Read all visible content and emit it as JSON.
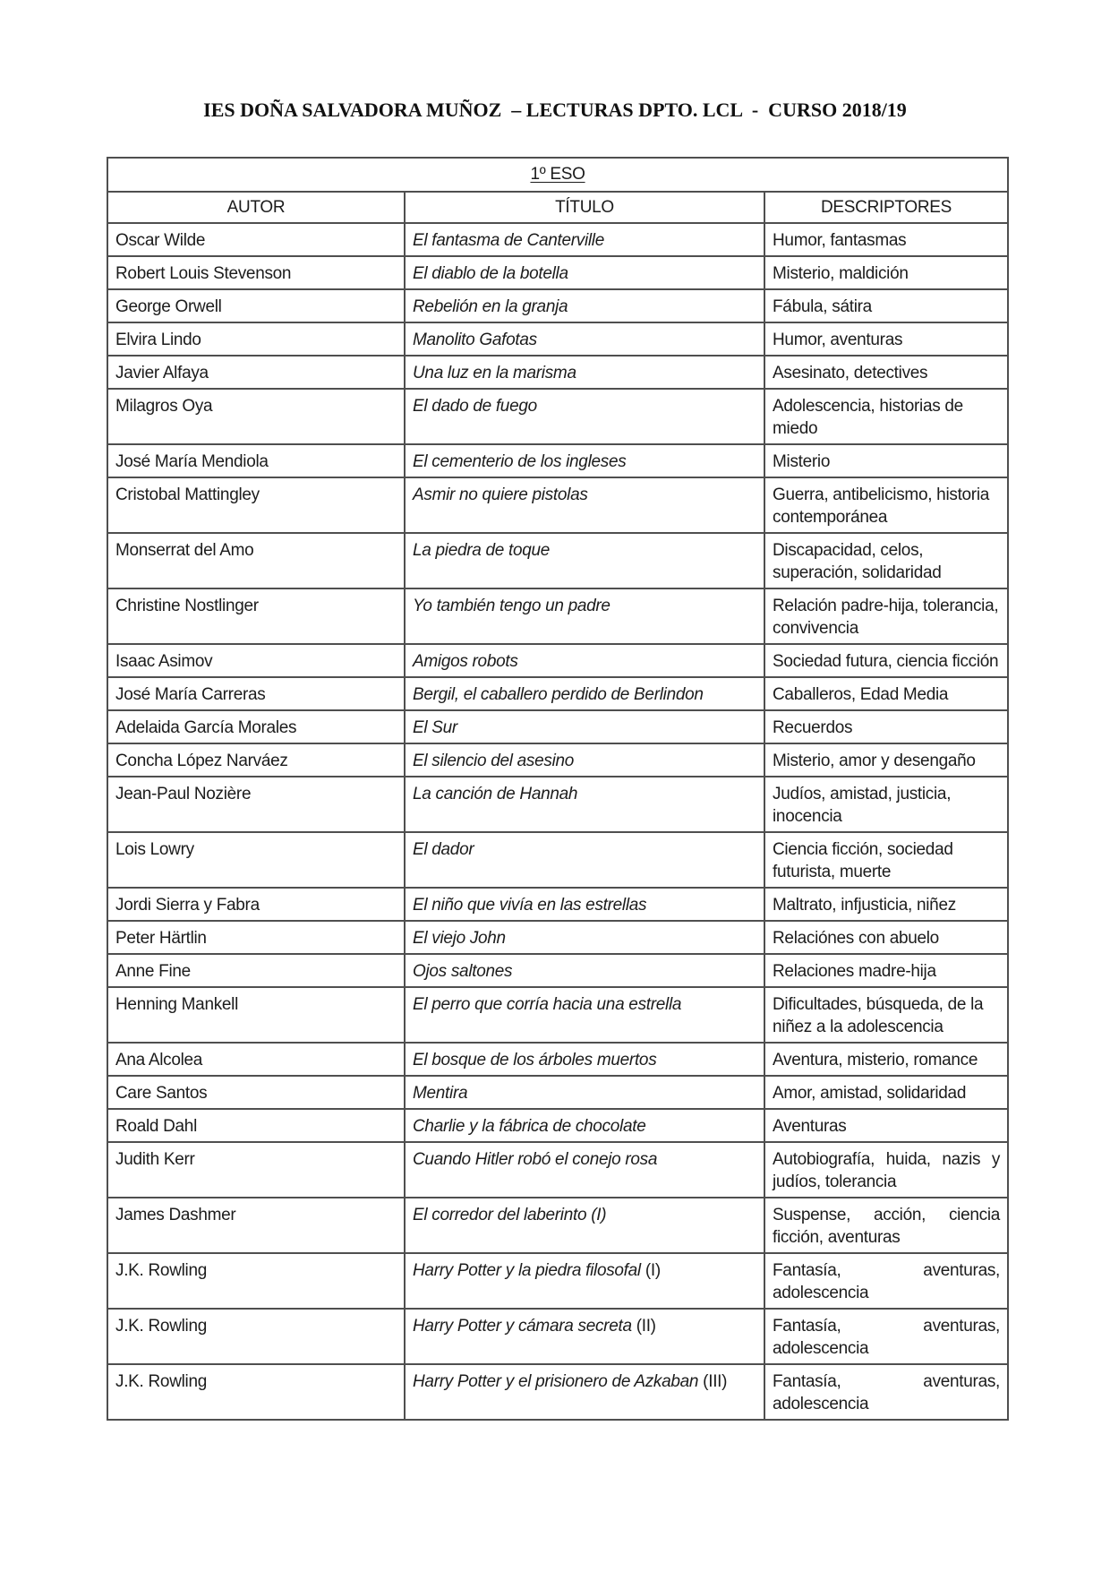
{
  "doc": {
    "title": "IES DOÑA SALVADORA MUÑOZ  – LECTURAS DPTO. LCL  -  CURSO 2018/19",
    "table": {
      "section_header": "1º ESO",
      "columns": [
        "AUTOR",
        "TÍTULO",
        "DESCRIPTORES"
      ],
      "rows": [
        {
          "author": "Oscar Wilde",
          "title": "El fantasma de Canterville",
          "title_suffix": "",
          "descriptors": "Humor, fantasmas",
          "justify": false
        },
        {
          "author": "Robert Louis Stevenson",
          "title": "El diablo de la botella",
          "title_suffix": "",
          "descriptors": "Misterio, maldición",
          "justify": false
        },
        {
          "author": "George Orwell",
          "title": "Rebelión en la granja",
          "title_suffix": "",
          "descriptors": "Fábula, sátira",
          "justify": false
        },
        {
          "author": "Elvira Lindo",
          "title": "Manolito Gafotas",
          "title_suffix": "",
          "descriptors": "Humor, aventuras",
          "justify": false
        },
        {
          "author": "Javier Alfaya",
          "title": "Una luz en la marisma",
          "title_suffix": "",
          "descriptors": "Asesinato, detectives",
          "justify": false
        },
        {
          "author": "Milagros Oya",
          "title": "El dado de fuego",
          "title_suffix": "",
          "descriptors": "Adolescencia, historias de miedo",
          "justify": false
        },
        {
          "author": "José María Mendiola",
          "title": "El cementerio de los ingleses",
          "title_suffix": "",
          "descriptors": "Misterio",
          "justify": false
        },
        {
          "author": "Cristobal Mattingley",
          "title": "Asmir no quiere pistolas",
          "title_suffix": "",
          "descriptors": "Guerra, antibelicismo, historia contemporánea",
          "justify": false
        },
        {
          "author": "Monserrat del Amo",
          "title": "La piedra de toque",
          "title_suffix": "",
          "descriptors": "Discapacidad, celos, superación, solidaridad",
          "justify": false
        },
        {
          "author": "Christine Nostlinger",
          "title": "Yo también tengo un padre",
          "title_suffix": "",
          "descriptors": "Relación padre-hija, tolerancia, convivencia",
          "justify": false
        },
        {
          "author": "Isaac Asimov",
          "title": "Amigos robots",
          "title_suffix": "",
          "descriptors": "Sociedad futura, ciencia ficción",
          "justify": false
        },
        {
          "author": "José María Carreras",
          "title": "Bergil, el caballero perdido de Berlindon",
          "title_suffix": "",
          "descriptors": "Caballeros, Edad Media",
          "justify": false
        },
        {
          "author": "Adelaida García Morales",
          "title": "El Sur",
          "title_suffix": "",
          "descriptors": "Recuerdos",
          "justify": false
        },
        {
          "author": "Concha López Narváez",
          "title": "El silencio del asesino",
          "title_suffix": "",
          "descriptors": "Misterio, amor y desengaño",
          "justify": false
        },
        {
          "author": "Jean-Paul Nozière",
          "title": "La canción de Hannah",
          "title_suffix": "",
          "descriptors": "Judíos, amistad, justicia, inocencia",
          "justify": false
        },
        {
          "author": "Lois Lowry",
          "title": "El dador",
          "title_suffix": "",
          "descriptors": "Ciencia ficción, sociedad futurista, muerte",
          "justify": false
        },
        {
          "author": "Jordi Sierra y Fabra",
          "title": "El niño que vivía en las estrellas",
          "title_suffix": "",
          "descriptors": "Maltrato, infjusticia, niñez",
          "justify": false
        },
        {
          "author": "Peter Härtlin",
          "title": "El viejo John",
          "title_suffix": "",
          "descriptors": "Relaciónes con abuelo",
          "justify": false
        },
        {
          "author": "Anne Fine",
          "title": "Ojos saltones",
          "title_suffix": "",
          "descriptors": "Relaciones madre-hija",
          "justify": false
        },
        {
          "author": "Henning Mankell",
          "title": "El perro que corría hacia una estrella",
          "title_suffix": "",
          "descriptors": "Dificultades, búsqueda, de la niñez a la adolescencia",
          "justify": false
        },
        {
          "author": "Ana Alcolea",
          "title": "El bosque de los árboles muertos",
          "title_suffix": "",
          "descriptors": "Aventura, misterio, romance",
          "justify": false
        },
        {
          "author": "Care Santos",
          "title": "Mentira",
          "title_suffix": "",
          "descriptors": "Amor, amistad, solidaridad",
          "justify": false
        },
        {
          "author": "Roald Dahl",
          "title": "Charlie y la fábrica de chocolate",
          "title_suffix": "",
          "descriptors": "Aventuras",
          "justify": false
        },
        {
          "author": "Judith Kerr",
          "title": "Cuando Hitler robó el conejo rosa",
          "title_suffix": "",
          "descriptors": "Autobiografía, huida, nazis y judíos, tolerancia",
          "justify": true
        },
        {
          "author": "James Dashmer",
          "title": "El corredor del laberinto (I)",
          "title_suffix": "",
          "descriptors": "Suspense, acción, ciencia ficción, aventuras",
          "justify": true
        },
        {
          "author": "J.K. Rowling",
          "title": "Harry Potter y la piedra filosofal",
          "title_suffix": "(I)",
          "descriptors": "Fantasía, aventuras, adolescencia",
          "justify": true
        },
        {
          "author": "J.K. Rowling",
          "title": "Harry Potter y cámara secreta",
          "title_suffix": "(II)",
          "descriptors": "Fantasía, aventuras, adolescencia",
          "justify": true
        },
        {
          "author": "J.K. Rowling",
          "title": "Harry Potter y el prisionero de Azkaban",
          "title_suffix": "(III)",
          "descriptors": "Fantasía, aventuras, adolescencia",
          "justify": true
        }
      ]
    }
  }
}
